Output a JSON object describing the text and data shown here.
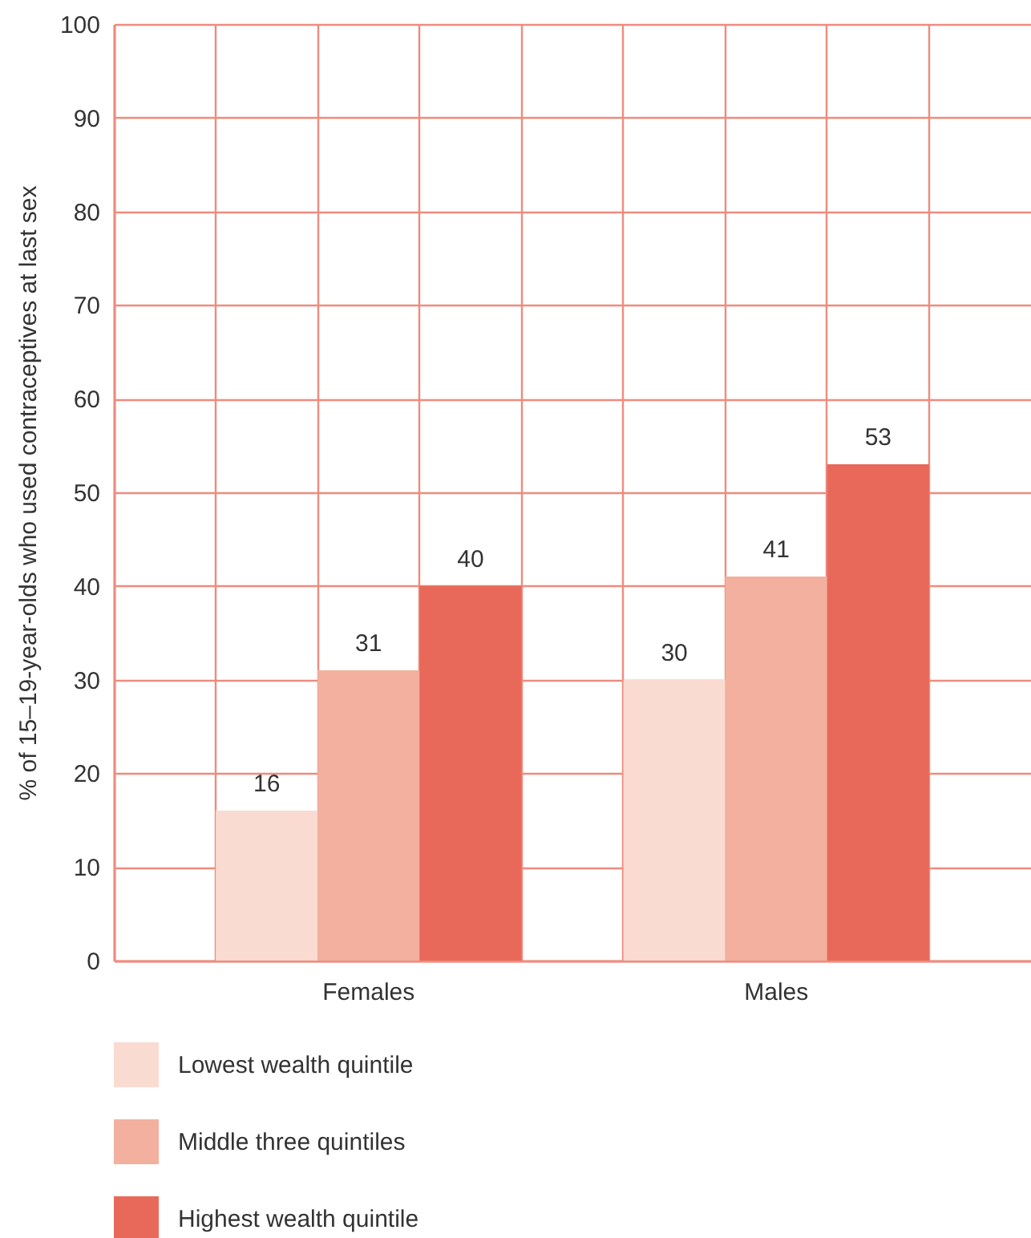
{
  "chart_data": {
    "type": "bar",
    "ylabel": "% of 15–19-year-olds who used contraceptives at last sex",
    "categories": [
      "Females",
      "Males"
    ],
    "series": [
      {
        "name": "Lowest wealth quintile",
        "color": "#f9dbd1",
        "values": [
          16,
          30
        ]
      },
      {
        "name": "Middle three quintiles",
        "color": "#f3b09f",
        "values": [
          31,
          41
        ]
      },
      {
        "name": "Highest wealth quintile",
        "color": "#e8695a",
        "values": [
          40,
          53
        ]
      }
    ],
    "ylim": [
      0,
      100
    ],
    "yticks": [
      0,
      10,
      20,
      30,
      40,
      50,
      60,
      70,
      80,
      90,
      100
    ],
    "grid": true,
    "legend": "bottom",
    "data_labels": true
  }
}
